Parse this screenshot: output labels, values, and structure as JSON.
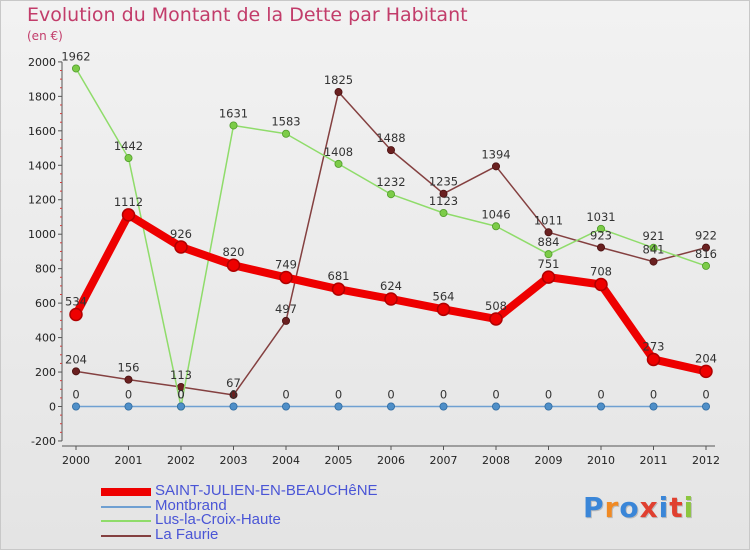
{
  "header": {
    "title": "Evolution du Montant de la Dette par Habitant",
    "unit": "(en €)"
  },
  "colors": {
    "saint_julien": "#ee0000",
    "montbrand": "#6fa0d2",
    "lus": "#8fdc6a",
    "la_faurie": "#844040",
    "title": "#c23c6a",
    "legend_text": "#4a55d6"
  },
  "logo": {
    "text": "Proxiti",
    "letters": [
      "P",
      "r",
      "o",
      "x",
      "i",
      "t",
      "i"
    ],
    "letter_colors": [
      "#3a86d8",
      "#f08a24",
      "#3a86d8",
      "#e04030",
      "#3a86d8",
      "#e04030",
      "#8cc63f"
    ]
  },
  "chart_data": {
    "type": "line",
    "title": "Evolution du Montant de la Dette par Habitant",
    "ylabel": "(en €)",
    "xlabel": "",
    "x": [
      "2000",
      "2001",
      "2002",
      "2003",
      "2004",
      "2005",
      "2006",
      "2007",
      "2008",
      "2009",
      "2010",
      "2011",
      "2012"
    ],
    "ylim": [
      -200,
      2000
    ],
    "yticks": [
      -200,
      0,
      200,
      400,
      600,
      800,
      1000,
      1200,
      1400,
      1600,
      1800,
      2000
    ],
    "grid": false,
    "legend_position": "bottom-left",
    "series": [
      {
        "name": "SAINT-JULIEN-EN-BEAUCHêNE",
        "color": "#ee0000",
        "values": [
          534,
          1112,
          926,
          820,
          749,
          681,
          624,
          564,
          508,
          751,
          708,
          273,
          204
        ],
        "labels": [
          "534",
          "1112",
          "926",
          "820",
          "749",
          "681",
          "624",
          "564",
          "508",
          "751",
          "708",
          "273",
          "204"
        ]
      },
      {
        "name": "Montbrand",
        "color": "#6fa0d2",
        "values": [
          0,
          0,
          0,
          0,
          0,
          0,
          0,
          0,
          0,
          0,
          0,
          0,
          0
        ],
        "labels": [
          "0",
          "0",
          "0",
          "0",
          "0",
          "0",
          "0",
          "0",
          "0",
          "0",
          "0",
          "0",
          "0"
        ]
      },
      {
        "name": "Lus-la-Croix-Haute",
        "color": "#8fdc6a",
        "values": [
          1962,
          1442,
          0,
          1631,
          1583,
          1408,
          1232,
          1123,
          1046,
          884,
          1031,
          921,
          816
        ],
        "labels": [
          "1962",
          "1442",
          "0",
          "1631",
          "1583",
          "1408",
          "1232",
          "1123",
          "1046",
          "884",
          "1031",
          "921",
          "816"
        ]
      },
      {
        "name": "La Faurie",
        "color": "#844040",
        "values": [
          204,
          156,
          113,
          67,
          497,
          1825,
          1488,
          1235,
          1394,
          1011,
          923,
          841,
          922
        ],
        "labels": [
          "204",
          "156",
          "113",
          "67",
          "497",
          "1825",
          "1488",
          "1235",
          "1394",
          "1011",
          "923",
          "841",
          "922"
        ]
      }
    ]
  }
}
